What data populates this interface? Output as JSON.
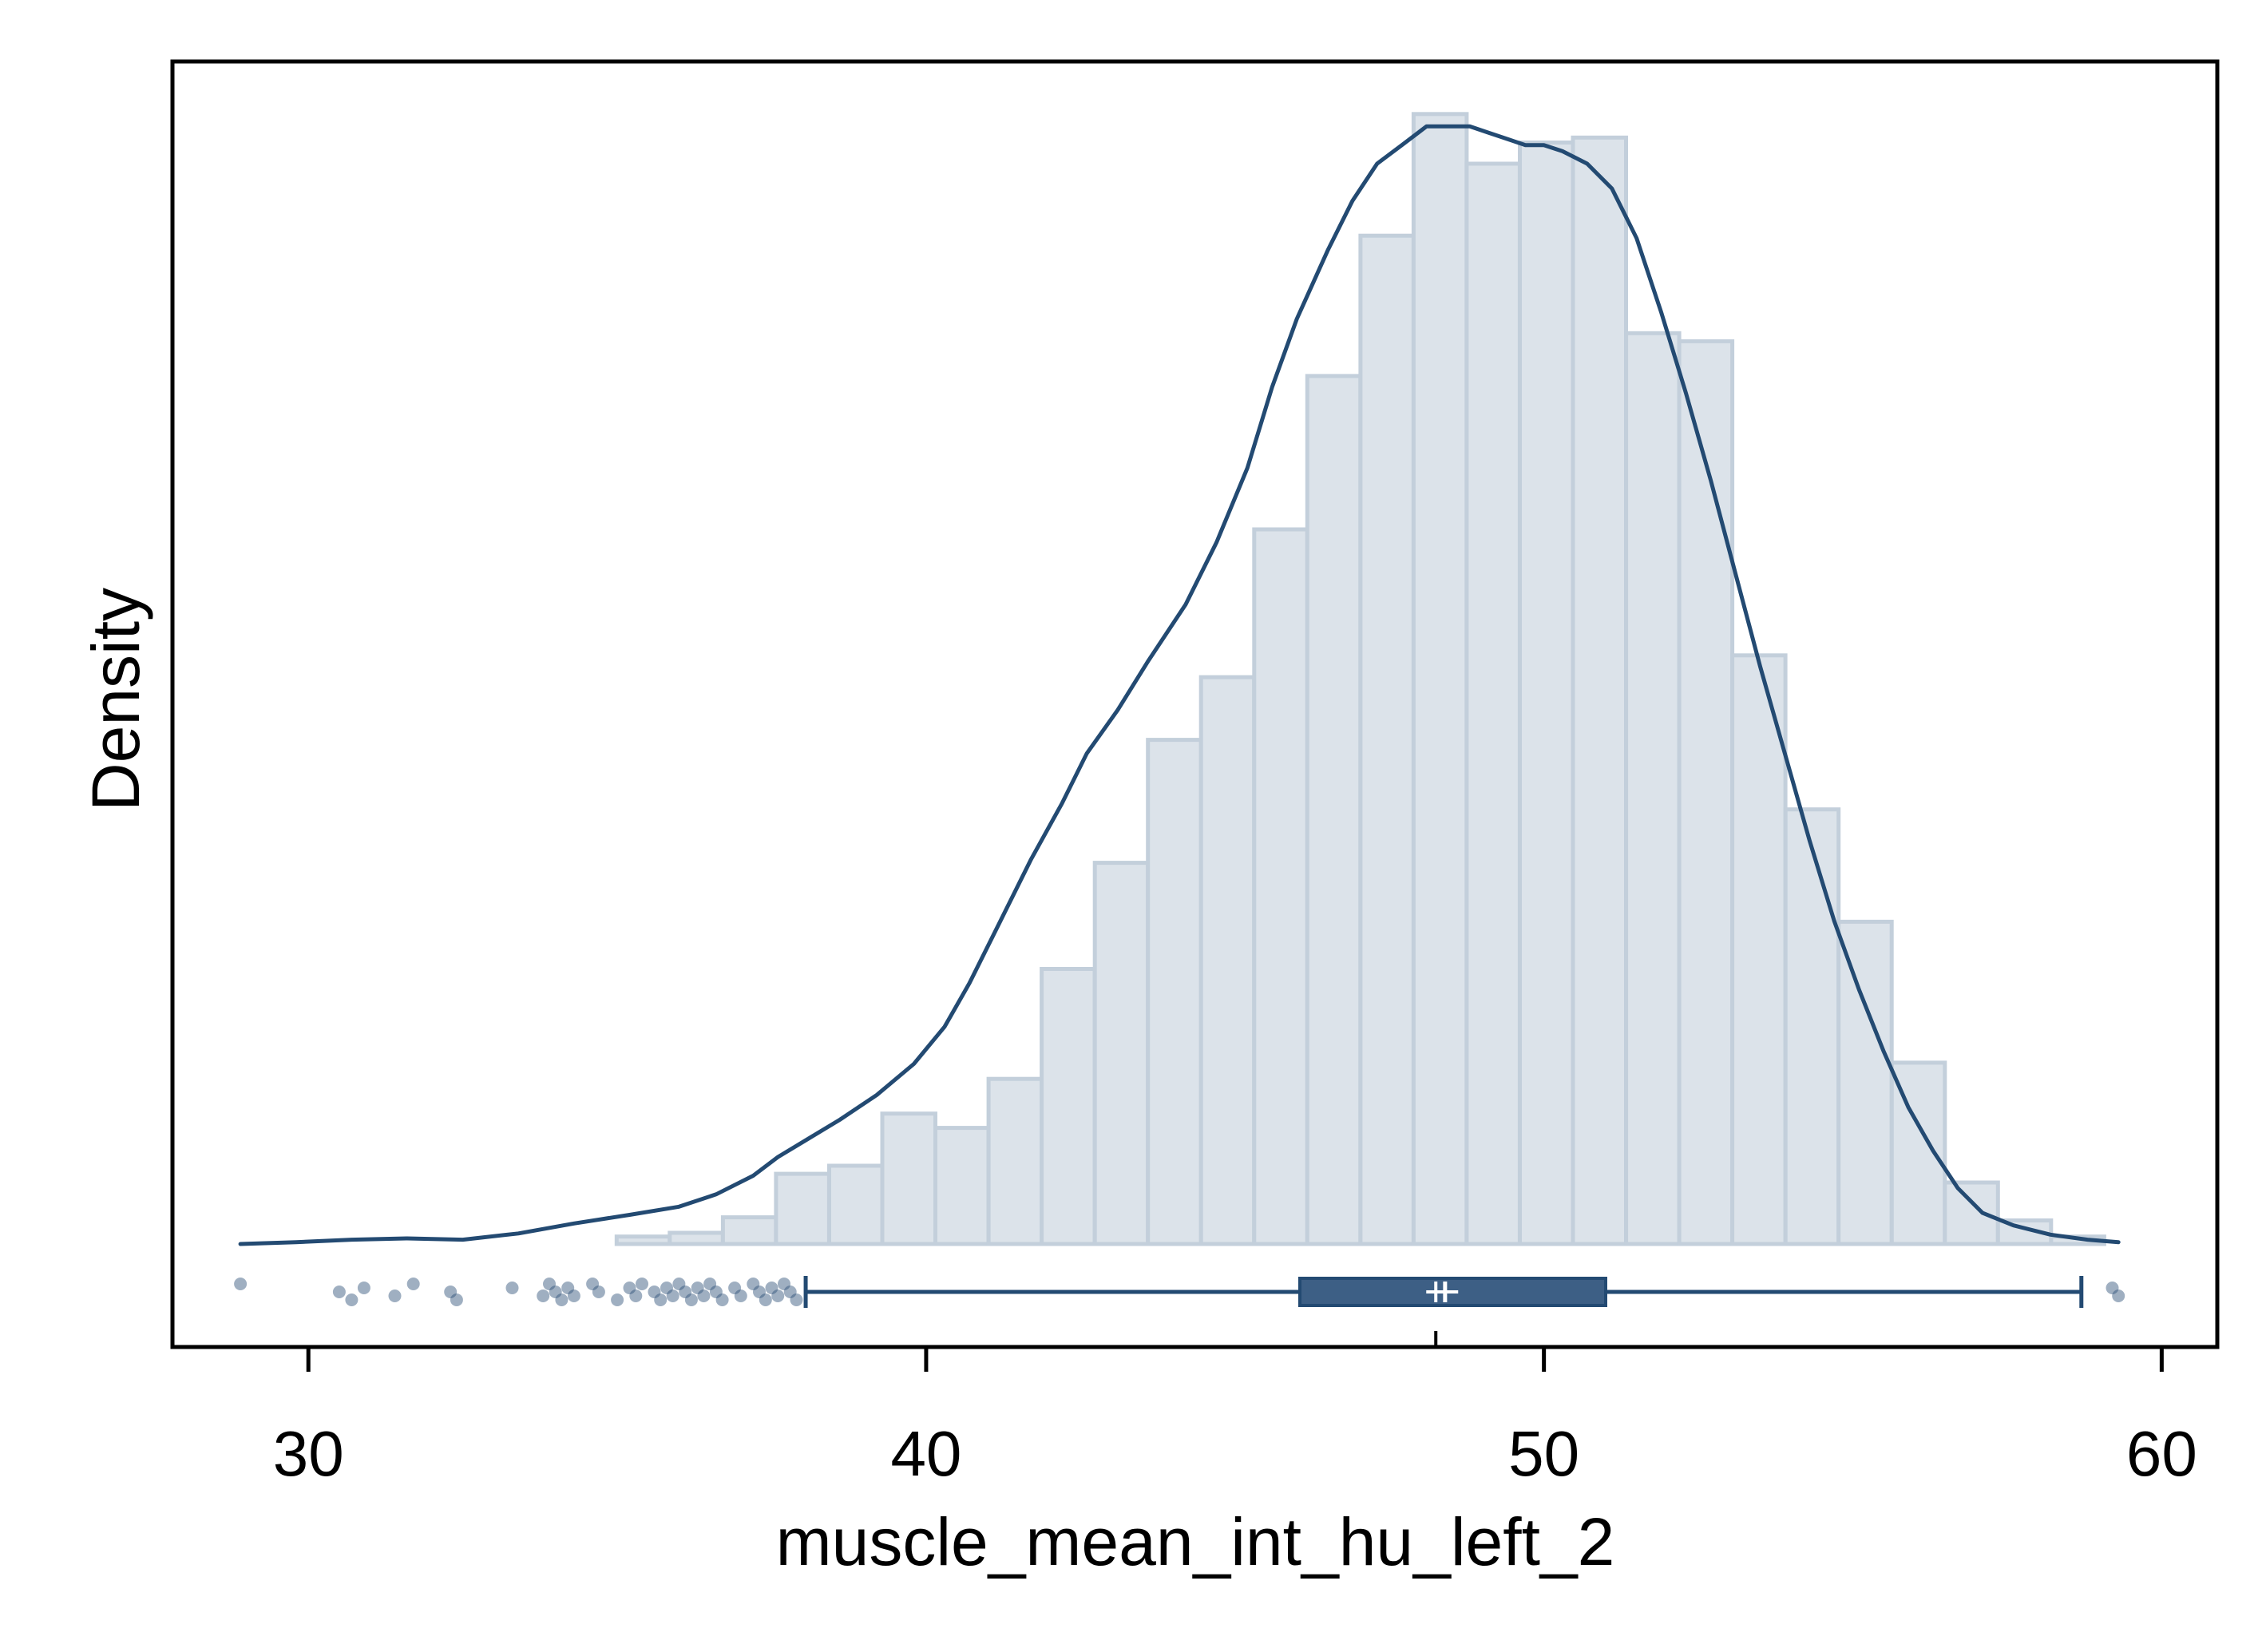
{
  "chart_data": {
    "type": "histogram",
    "xlabel": "muscle_mean_int_hu_left_2",
    "ylabel": "Density",
    "xlim": [
      27.8,
      60.9
    ],
    "x_ticks": [
      30,
      40,
      50,
      60
    ],
    "x_tick_labels": [
      "30",
      "40",
      "50",
      "60"
    ],
    "y_ticks_shown": false,
    "grid": false,
    "legend": "none",
    "colors": {
      "bar_fill": "#dce3ea",
      "bar_stroke": "#c3cfdb",
      "line": "#234a72",
      "box_fill": "#3d5f85",
      "point": "#2b4d76",
      "axis": "#000000"
    },
    "histogram": {
      "bin_width": 0.86,
      "bins": [
        {
          "x0": 34.99,
          "x1": 35.85,
          "density": 0.0012
        },
        {
          "x0": 35.85,
          "x1": 36.71,
          "density": 0.0018
        },
        {
          "x0": 36.71,
          "x1": 37.57,
          "density": 0.0043
        },
        {
          "x0": 37.57,
          "x1": 38.43,
          "density": 0.0113
        },
        {
          "x0": 38.43,
          "x1": 39.29,
          "density": 0.0126
        },
        {
          "x0": 39.29,
          "x1": 40.15,
          "density": 0.021
        },
        {
          "x0": 40.15,
          "x1": 41.01,
          "density": 0.0187
        },
        {
          "x0": 41.01,
          "x1": 41.87,
          "density": 0.0266
        },
        {
          "x0": 41.87,
          "x1": 42.73,
          "density": 0.0443
        },
        {
          "x0": 42.73,
          "x1": 43.59,
          "density": 0.0614
        },
        {
          "x0": 43.59,
          "x1": 44.45,
          "density": 0.0812
        },
        {
          "x0": 44.45,
          "x1": 45.31,
          "density": 0.0913
        },
        {
          "x0": 45.31,
          "x1": 46.17,
          "density": 0.1151
        },
        {
          "x0": 46.17,
          "x1": 47.03,
          "density": 0.1398
        },
        {
          "x0": 47.03,
          "x1": 47.89,
          "density": 0.1624
        },
        {
          "x0": 47.89,
          "x1": 48.75,
          "density": 0.182
        },
        {
          "x0": 48.75,
          "x1": 49.61,
          "density": 0.174
        },
        {
          "x0": 49.61,
          "x1": 50.47,
          "density": 0.1774
        },
        {
          "x0": 50.47,
          "x1": 51.33,
          "density": 0.1782
        },
        {
          "x0": 51.33,
          "x1": 52.19,
          "density": 0.1467
        },
        {
          "x0": 52.19,
          "x1": 53.05,
          "density": 0.1454
        },
        {
          "x0": 53.05,
          "x1": 53.91,
          "density": 0.0948
        },
        {
          "x0": 53.91,
          "x1": 54.77,
          "density": 0.07
        },
        {
          "x0": 54.77,
          "x1": 55.63,
          "density": 0.0519
        },
        {
          "x0": 55.63,
          "x1": 56.49,
          "density": 0.0292
        },
        {
          "x0": 56.49,
          "x1": 57.35,
          "density": 0.0099
        },
        {
          "x0": 57.35,
          "x1": 58.21,
          "density": 0.0038
        },
        {
          "x0": 58.21,
          "x1": 59.07,
          "density": 0.0012
        }
      ]
    },
    "density_curve": {
      "x": [
        28.9,
        29.8,
        30.7,
        31.6,
        32.5,
        33.4,
        34.3,
        35.2,
        36.0,
        36.6,
        37.2,
        37.6,
        38.1,
        38.6,
        39.2,
        39.8,
        40.3,
        40.7,
        41.2,
        41.7,
        42.2,
        42.6,
        43.1,
        43.6,
        44.2,
        44.7,
        45.2,
        45.6,
        46.0,
        46.5,
        46.9,
        47.3,
        47.7,
        48.1,
        48.4,
        48.8,
        49.1,
        49.4,
        49.7,
        50.0,
        50.3,
        50.7,
        51.1,
        51.5,
        51.9,
        52.3,
        52.7,
        53.1,
        53.5,
        53.9,
        54.3,
        54.7,
        55.1,
        55.5,
        55.9,
        56.3,
        56.7,
        57.1,
        57.6,
        58.2,
        58.8,
        59.3
      ],
      "y": [
        0.0,
        0.0003,
        0.0007,
        0.0009,
        0.0007,
        0.0017,
        0.0033,
        0.0047,
        0.006,
        0.008,
        0.011,
        0.014,
        0.017,
        0.02,
        0.024,
        0.029,
        0.035,
        0.042,
        0.052,
        0.062,
        0.071,
        0.079,
        0.086,
        0.094,
        0.103,
        0.113,
        0.125,
        0.138,
        0.149,
        0.16,
        0.168,
        0.174,
        0.177,
        0.18,
        0.18,
        0.18,
        0.179,
        0.178,
        0.177,
        0.177,
        0.176,
        0.174,
        0.17,
        0.162,
        0.15,
        0.137,
        0.123,
        0.108,
        0.093,
        0.079,
        0.065,
        0.052,
        0.041,
        0.031,
        0.022,
        0.015,
        0.009,
        0.005,
        0.003,
        0.0015,
        0.0007,
        0.0003
      ]
    },
    "box_plot": {
      "whisker_low": 38.05,
      "q1": 46.05,
      "median": 48.4,
      "q3": 51.0,
      "whisker_high": 58.7,
      "mean": 48.25,
      "outliers": [
        28.9,
        30.5,
        30.7,
        30.9,
        31.4,
        31.7,
        32.3,
        32.4,
        33.3,
        33.8,
        33.9,
        34.0,
        34.1,
        34.2,
        34.3,
        34.6,
        34.7,
        35.0,
        35.2,
        35.3,
        35.4,
        35.6,
        35.7,
        35.8,
        35.9,
        36.0,
        36.1,
        36.2,
        36.3,
        36.4,
        36.5,
        36.6,
        36.7,
        36.9,
        37.0,
        37.2,
        37.3,
        37.4,
        37.5,
        37.6,
        37.7,
        37.8,
        37.9,
        59.2,
        59.3
      ]
    }
  }
}
